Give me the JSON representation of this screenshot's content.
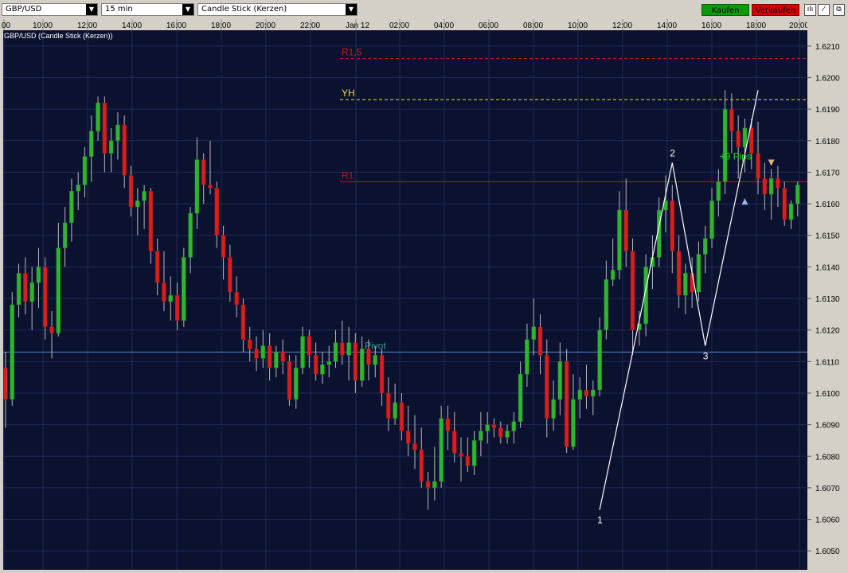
{
  "toolbar": {
    "symbol": "GBP/USD",
    "timeframe": "15 min",
    "chart_style": "Candle Stick (Kerzen)",
    "buy_label": "Kaufen",
    "sell_label": "Verkaufen",
    "tools": [
      "bar-chart-icon",
      "draw-line-icon",
      "popout-icon"
    ]
  },
  "colors": {
    "background": "#0b1230",
    "grid": "#1f2a55",
    "bull": "#2fb52f",
    "bear": "#d81e1e",
    "wick": "#b9b9b9",
    "resistance_r15": "#d01a1a",
    "resistance_r1": "#c4141e",
    "yesterday_high": "#e8e02c",
    "pivot": "#5b84c9",
    "pivot_label": "#2f9b8a",
    "pattern_line": "#ffffff",
    "pips_label": "#22d322"
  },
  "chart_data": {
    "type": "candlestick",
    "title": "GBP/USD (Candle Stick (Kerzen))",
    "x_tick_labels": [
      "00",
      "10:00",
      "12:00",
      "14:00",
      "16:00",
      "18:00",
      "20:00",
      "22:00",
      "Jan 12",
      "02:00",
      "04:00",
      "06:00",
      "08:00",
      "10:00",
      "12:00",
      "14:00",
      "16:00",
      "18:00",
      "20:00"
    ],
    "y_ticks": [
      1.605,
      1.606,
      1.607,
      1.608,
      1.609,
      1.61,
      1.611,
      1.612,
      1.613,
      1.614,
      1.615,
      1.616,
      1.617,
      1.618,
      1.619,
      1.62,
      1.621
    ],
    "ylim": [
      1.6044,
      1.6215
    ],
    "candles": [
      [
        1.6108,
        1.6113,
        1.6089,
        1.6098
      ],
      [
        1.6098,
        1.6132,
        1.6096,
        1.6128
      ],
      [
        1.6128,
        1.6141,
        1.6124,
        1.6138
      ],
      [
        1.6138,
        1.6143,
        1.6125,
        1.6129
      ],
      [
        1.6129,
        1.614,
        1.612,
        1.6135
      ],
      [
        1.6135,
        1.6146,
        1.6127,
        1.614
      ],
      [
        1.614,
        1.6143,
        1.6117,
        1.6121
      ],
      [
        1.6121,
        1.6126,
        1.6111,
        1.6119
      ],
      [
        1.6119,
        1.6154,
        1.6118,
        1.6146
      ],
      [
        1.6146,
        1.6159,
        1.614,
        1.6154
      ],
      [
        1.6154,
        1.6168,
        1.6148,
        1.6164
      ],
      [
        1.6164,
        1.617,
        1.6158,
        1.6166
      ],
      [
        1.6166,
        1.6178,
        1.6162,
        1.6175
      ],
      [
        1.6175,
        1.6188,
        1.6167,
        1.6183
      ],
      [
        1.6183,
        1.6194,
        1.618,
        1.6192
      ],
      [
        1.6192,
        1.6194,
        1.617,
        1.6176
      ],
      [
        1.6176,
        1.6184,
        1.617,
        1.618
      ],
      [
        1.618,
        1.6189,
        1.6174,
        1.6185
      ],
      [
        1.6185,
        1.6188,
        1.6165,
        1.6169
      ],
      [
        1.6169,
        1.6172,
        1.6156,
        1.6159
      ],
      [
        1.6159,
        1.6165,
        1.615,
        1.6161
      ],
      [
        1.6161,
        1.6166,
        1.6152,
        1.6164
      ],
      [
        1.6164,
        1.6165,
        1.6141,
        1.6145
      ],
      [
        1.6145,
        1.6149,
        1.6131,
        1.6135
      ],
      [
        1.6135,
        1.6145,
        1.6126,
        1.6129
      ],
      [
        1.6129,
        1.6137,
        1.6123,
        1.6131
      ],
      [
        1.6131,
        1.6135,
        1.612,
        1.6123
      ],
      [
        1.6123,
        1.6146,
        1.6121,
        1.6143
      ],
      [
        1.6143,
        1.6159,
        1.6138,
        1.6157
      ],
      [
        1.6157,
        1.6181,
        1.6152,
        1.6174
      ],
      [
        1.6174,
        1.6176,
        1.616,
        1.6166
      ],
      [
        1.6166,
        1.618,
        1.6163,
        1.6165
      ],
      [
        1.6165,
        1.6167,
        1.6146,
        1.615
      ],
      [
        1.615,
        1.6153,
        1.6136,
        1.6143
      ],
      [
        1.6143,
        1.6147,
        1.6129,
        1.6132
      ],
      [
        1.6132,
        1.6137,
        1.6124,
        1.6128
      ],
      [
        1.6128,
        1.613,
        1.6113,
        1.6117
      ],
      [
        1.6117,
        1.6121,
        1.611,
        1.6114
      ],
      [
        1.6114,
        1.6118,
        1.6107,
        1.6111
      ],
      [
        1.6111,
        1.612,
        1.6108,
        1.6115
      ],
      [
        1.6115,
        1.6119,
        1.6104,
        1.6108
      ],
      [
        1.6108,
        1.6115,
        1.6105,
        1.6113
      ],
      [
        1.6113,
        1.6117,
        1.6106,
        1.611
      ],
      [
        1.611,
        1.6112,
        1.6096,
        1.6098
      ],
      [
        1.6098,
        1.6112,
        1.6095,
        1.6108
      ],
      [
        1.6108,
        1.6121,
        1.6106,
        1.6118
      ],
      [
        1.6118,
        1.612,
        1.6108,
        1.6112
      ],
      [
        1.6112,
        1.6116,
        1.6104,
        1.6106
      ],
      [
        1.6106,
        1.6113,
        1.6103,
        1.6109
      ],
      [
        1.6109,
        1.6115,
        1.6105,
        1.611
      ],
      [
        1.611,
        1.612,
        1.6108,
        1.6116
      ],
      [
        1.6116,
        1.6123,
        1.6109,
        1.6112
      ],
      [
        1.6112,
        1.6121,
        1.6104,
        1.6116
      ],
      [
        1.6116,
        1.6119,
        1.61,
        1.6104
      ],
      [
        1.6104,
        1.6118,
        1.6102,
        1.6114
      ],
      [
        1.6114,
        1.6117,
        1.6104,
        1.6109
      ],
      [
        1.6109,
        1.6115,
        1.6105,
        1.6112
      ],
      [
        1.6112,
        1.6114,
        1.6096,
        1.61
      ],
      [
        1.61,
        1.6105,
        1.6088,
        1.6092
      ],
      [
        1.6092,
        1.6103,
        1.609,
        1.6097
      ],
      [
        1.6097,
        1.61,
        1.6085,
        1.6088
      ],
      [
        1.6088,
        1.6096,
        1.608,
        1.6084
      ],
      [
        1.6084,
        1.6093,
        1.6076,
        1.6082
      ],
      [
        1.6082,
        1.6089,
        1.607,
        1.6072
      ],
      [
        1.6072,
        1.6075,
        1.6063,
        1.607
      ],
      [
        1.607,
        1.6083,
        1.6066,
        1.6072
      ],
      [
        1.6072,
        1.6096,
        1.607,
        1.6092
      ],
      [
        1.6092,
        1.6096,
        1.6082,
        1.6088
      ],
      [
        1.6088,
        1.6094,
        1.6078,
        1.6081
      ],
      [
        1.6081,
        1.6086,
        1.6072,
        1.608
      ],
      [
        1.608,
        1.6086,
        1.6075,
        1.6077
      ],
      [
        1.6077,
        1.6088,
        1.6074,
        1.6085
      ],
      [
        1.6085,
        1.6094,
        1.608,
        1.6088
      ],
      [
        1.6088,
        1.6094,
        1.6084,
        1.609
      ],
      [
        1.609,
        1.6092,
        1.6086,
        1.6089
      ],
      [
        1.6089,
        1.6091,
        1.6084,
        1.6086
      ],
      [
        1.6086,
        1.609,
        1.6084,
        1.6088
      ],
      [
        1.6088,
        1.6094,
        1.6084,
        1.6091
      ],
      [
        1.6091,
        1.611,
        1.6089,
        1.6106
      ],
      [
        1.6106,
        1.6122,
        1.6102,
        1.6117
      ],
      [
        1.6117,
        1.613,
        1.6112,
        1.6121
      ],
      [
        1.6121,
        1.6125,
        1.6106,
        1.6112
      ],
      [
        1.6112,
        1.6117,
        1.6086,
        1.6092
      ],
      [
        1.6092,
        1.6104,
        1.6088,
        1.6098
      ],
      [
        1.6098,
        1.6116,
        1.6093,
        1.611
      ],
      [
        1.611,
        1.6114,
        1.6081,
        1.6083
      ],
      [
        1.6083,
        1.6106,
        1.6082,
        1.6098
      ],
      [
        1.6098,
        1.6105,
        1.6092,
        1.6101
      ],
      [
        1.6101,
        1.6109,
        1.6095,
        1.6099
      ],
      [
        1.6099,
        1.6104,
        1.6093,
        1.6101
      ],
      [
        1.6101,
        1.6124,
        1.6099,
        1.612
      ],
      [
        1.612,
        1.6142,
        1.6117,
        1.6136
      ],
      [
        1.6136,
        1.6149,
        1.6134,
        1.6139
      ],
      [
        1.6139,
        1.6164,
        1.6136,
        1.6158
      ],
      [
        1.6158,
        1.6168,
        1.614,
        1.6145
      ],
      [
        1.6145,
        1.6149,
        1.6112,
        1.612
      ],
      [
        1.612,
        1.6126,
        1.6115,
        1.6122
      ],
      [
        1.6122,
        1.6144,
        1.6118,
        1.614
      ],
      [
        1.614,
        1.615,
        1.6133,
        1.6143
      ],
      [
        1.6143,
        1.6162,
        1.614,
        1.6158
      ],
      [
        1.6158,
        1.6169,
        1.6151,
        1.6161
      ],
      [
        1.6161,
        1.6166,
        1.6138,
        1.6145
      ],
      [
        1.6145,
        1.615,
        1.6127,
        1.6131
      ],
      [
        1.6131,
        1.6141,
        1.6125,
        1.6138
      ],
      [
        1.6138,
        1.6143,
        1.6127,
        1.6132
      ],
      [
        1.6132,
        1.6148,
        1.6129,
        1.6144
      ],
      [
        1.6144,
        1.6153,
        1.6138,
        1.6149
      ],
      [
        1.6149,
        1.6165,
        1.6146,
        1.6161
      ],
      [
        1.6161,
        1.6171,
        1.6156,
        1.6167
      ],
      [
        1.6167,
        1.6196,
        1.6163,
        1.619
      ],
      [
        1.619,
        1.6195,
        1.6176,
        1.6183
      ],
      [
        1.6183,
        1.6188,
        1.6168,
        1.6178
      ],
      [
        1.6178,
        1.6187,
        1.617,
        1.6184
      ],
      [
        1.6184,
        1.6187,
        1.6171,
        1.6176
      ],
      [
        1.6176,
        1.6186,
        1.6163,
        1.6168
      ],
      [
        1.6168,
        1.6173,
        1.6158,
        1.6163
      ],
      [
        1.6163,
        1.6171,
        1.6155,
        1.6168
      ],
      [
        1.6168,
        1.6172,
        1.6159,
        1.6165
      ],
      [
        1.6165,
        1.6167,
        1.6153,
        1.6155
      ],
      [
        1.6155,
        1.6161,
        1.6152,
        1.616
      ],
      [
        1.616,
        1.6167,
        1.6156,
        1.6166
      ]
    ],
    "levels": [
      {
        "name": "R1,5",
        "value": 1.6206,
        "style": "dashed",
        "color_key": "resistance_r15"
      },
      {
        "name": "YH",
        "value": 1.6193,
        "style": "dashed",
        "color_key": "yesterday_high"
      },
      {
        "name": "R1",
        "value": 1.6167,
        "style": "solid",
        "color_key": "resistance_r1"
      },
      {
        "name": "Pivot",
        "value": 1.6113,
        "style": "solid",
        "color_key": "pivot"
      }
    ],
    "pattern_points": [
      {
        "label": "1",
        "bar": 90,
        "value": 1.6063
      },
      {
        "label": "2",
        "bar": 101,
        "value": 1.6173
      },
      {
        "label": "3",
        "bar": 106,
        "value": 1.6115
      },
      {
        "label": "",
        "bar": 114,
        "value": 1.6196
      }
    ],
    "annotations": [
      {
        "text": "+9 Pips",
        "bar": 109,
        "value": 1.6175
      }
    ],
    "markers": [
      {
        "type": "buy-arrow",
        "bar": 112,
        "value": 1.6161
      },
      {
        "type": "sell-arrow",
        "bar": 116,
        "value": 1.6173
      }
    ],
    "grid": true
  }
}
